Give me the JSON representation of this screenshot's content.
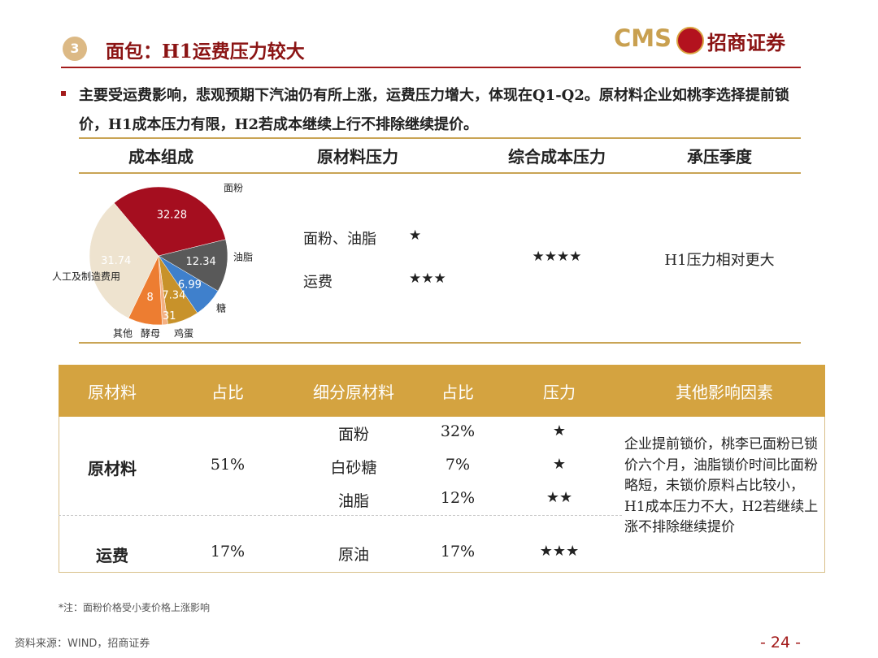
{
  "header": {
    "number": "3",
    "title": "面包：H1运费压力较大",
    "logo_text": "CMS",
    "brand": "招商证券"
  },
  "bullet": "主要受运费影响，悲观预期下汽油仍有所上涨，运费压力增大，体现在Q1-Q2。原材料企业如桃李选择提前锁价，H1成本压力有限，H2若成本继续上行不排除继续提价。",
  "summary": {
    "headers": [
      "成本组成",
      "原材料压力",
      "综合成本压力",
      "承压季度"
    ],
    "raw_pressure": [
      {
        "item": "面粉、油脂",
        "stars": "★"
      },
      {
        "item": "运费",
        "stars": "★★★"
      }
    ],
    "overall": "★★★★",
    "quarter": "H1压力相对更大"
  },
  "chart_data": {
    "type": "pie",
    "categories": [
      "面粉",
      "油脂",
      "糖",
      "鸡蛋",
      "酵母",
      "其他",
      "人工及制造费用"
    ],
    "values": [
      32.28,
      12.34,
      6.99,
      7.34,
      1.31,
      8,
      31.74
    ],
    "colors": [
      "#a50e1f",
      "#595959",
      "#3f80cc",
      "#c8922a",
      "#f4b183",
      "#ed7d31",
      "#eee3cf"
    ]
  },
  "table": {
    "headers": [
      "原材料",
      "占比",
      "细分原材料",
      "占比",
      "压力",
      "其他影响因素"
    ],
    "groups": [
      {
        "material": "原材料",
        "share": "51%",
        "items": [
          {
            "name": "面粉",
            "share": "32%",
            "pressure": "★"
          },
          {
            "name": "白砂糖",
            "share": "7%",
            "pressure": "★"
          },
          {
            "name": "油脂",
            "share": "12%",
            "pressure": "★★"
          }
        ]
      },
      {
        "material": "运费",
        "share": "17%",
        "items": [
          {
            "name": "原油",
            "share": "17%",
            "pressure": "★★★"
          }
        ]
      }
    ],
    "other_factors": "企业提前锁价，桃李已面粉已锁价六个月，油脂锁价时间比面粉略短，未锁价原料占比较小，H1成本压力不大，H2若继续上涨不排除继续提价"
  },
  "footer": {
    "note": "*注：面粉价格受小麦价格上涨影响",
    "source": "资料来源：WIND，招商证券",
    "page": "- 24 -"
  }
}
